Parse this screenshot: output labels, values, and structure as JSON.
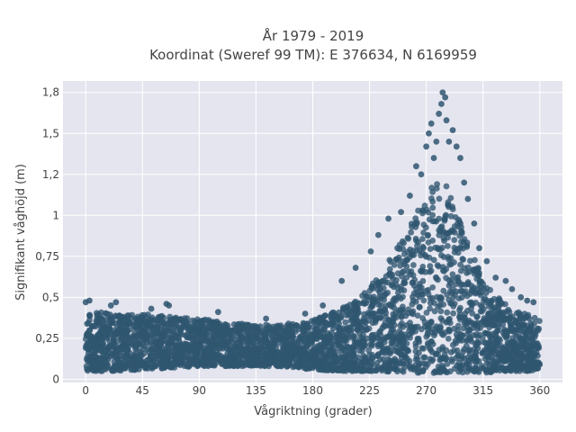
{
  "chart_data": {
    "type": "scatter",
    "title_line1": "År 1979 - 2019",
    "title_line2": "Koordinat (Sweref 99 TM): E 376634, N 6169959",
    "xlabel": "Vågriktning (grader)",
    "ylabel": "Signifikant våghöjd (m)",
    "xlim": [
      -18,
      378
    ],
    "ylim": [
      -0.02,
      1.82
    ],
    "xticks": [
      0,
      45,
      90,
      135,
      180,
      225,
      270,
      315,
      360
    ],
    "xtick_labels": [
      "0",
      "45",
      "90",
      "135",
      "180",
      "225",
      "270",
      "315",
      "360"
    ],
    "yticks": [
      0,
      0.25,
      0.5,
      0.75,
      1,
      1.25,
      1.5,
      1.75
    ],
    "ytick_labels": [
      "0",
      "0,25",
      "0,5",
      "0,75",
      "1",
      "1,2",
      "1,5",
      "1,8"
    ],
    "grid": true,
    "colors": {
      "marker": "#2f5670",
      "plot_bg": "#e5e5ef",
      "grid": "#ffffff",
      "text": "#444444"
    },
    "envelope": {
      "direction": [
        0,
        20,
        45,
        70,
        90,
        120,
        150,
        180,
        200,
        220,
        235,
        250,
        260,
        270,
        280,
        285,
        290,
        300,
        310,
        320,
        330,
        340,
        350,
        360
      ],
      "lower": [
        0.05,
        0.05,
        0.06,
        0.07,
        0.08,
        0.08,
        0.08,
        0.06,
        0.05,
        0.05,
        0.05,
        0.04,
        0.04,
        0.04,
        0.03,
        0.03,
        0.03,
        0.04,
        0.04,
        0.04,
        0.05,
        0.05,
        0.05,
        0.06
      ],
      "upper": [
        0.42,
        0.4,
        0.4,
        0.38,
        0.37,
        0.34,
        0.33,
        0.36,
        0.42,
        0.52,
        0.65,
        0.85,
        0.98,
        1.12,
        1.25,
        1.2,
        1.1,
        0.9,
        0.7,
        0.55,
        0.48,
        0.42,
        0.4,
        0.38
      ]
    },
    "outliers": [
      {
        "x": 0,
        "y": 0.47
      },
      {
        "x": 3,
        "y": 0.48
      },
      {
        "x": 20,
        "y": 0.45
      },
      {
        "x": 24,
        "y": 0.47
      },
      {
        "x": 52,
        "y": 0.43
      },
      {
        "x": 64,
        "y": 0.46
      },
      {
        "x": 66,
        "y": 0.45
      },
      {
        "x": 105,
        "y": 0.41
      },
      {
        "x": 143,
        "y": 0.37
      },
      {
        "x": 174,
        "y": 0.4
      },
      {
        "x": 188,
        "y": 0.45
      },
      {
        "x": 203,
        "y": 0.6
      },
      {
        "x": 214,
        "y": 0.68
      },
      {
        "x": 226,
        "y": 0.78
      },
      {
        "x": 232,
        "y": 0.88
      },
      {
        "x": 240,
        "y": 0.98
      },
      {
        "x": 250,
        "y": 1.02
      },
      {
        "x": 257,
        "y": 1.12
      },
      {
        "x": 262,
        "y": 1.3
      },
      {
        "x": 266,
        "y": 1.25
      },
      {
        "x": 270,
        "y": 1.42
      },
      {
        "x": 272,
        "y": 1.5
      },
      {
        "x": 274,
        "y": 1.56
      },
      {
        "x": 276,
        "y": 1.35
      },
      {
        "x": 278,
        "y": 1.45
      },
      {
        "x": 280,
        "y": 1.62
      },
      {
        "x": 282,
        "y": 1.68
      },
      {
        "x": 283,
        "y": 1.75
      },
      {
        "x": 285,
        "y": 1.72
      },
      {
        "x": 286,
        "y": 1.58
      },
      {
        "x": 288,
        "y": 1.45
      },
      {
        "x": 291,
        "y": 1.52
      },
      {
        "x": 294,
        "y": 1.42
      },
      {
        "x": 297,
        "y": 1.35
      },
      {
        "x": 300,
        "y": 1.2
      },
      {
        "x": 303,
        "y": 1.1
      },
      {
        "x": 308,
        "y": 0.95
      },
      {
        "x": 312,
        "y": 0.8
      },
      {
        "x": 318,
        "y": 0.72
      },
      {
        "x": 325,
        "y": 0.62
      },
      {
        "x": 333,
        "y": 0.6
      },
      {
        "x": 338,
        "y": 0.55
      },
      {
        "x": 345,
        "y": 0.5
      },
      {
        "x": 350,
        "y": 0.48
      },
      {
        "x": 355,
        "y": 0.47
      }
    ]
  }
}
